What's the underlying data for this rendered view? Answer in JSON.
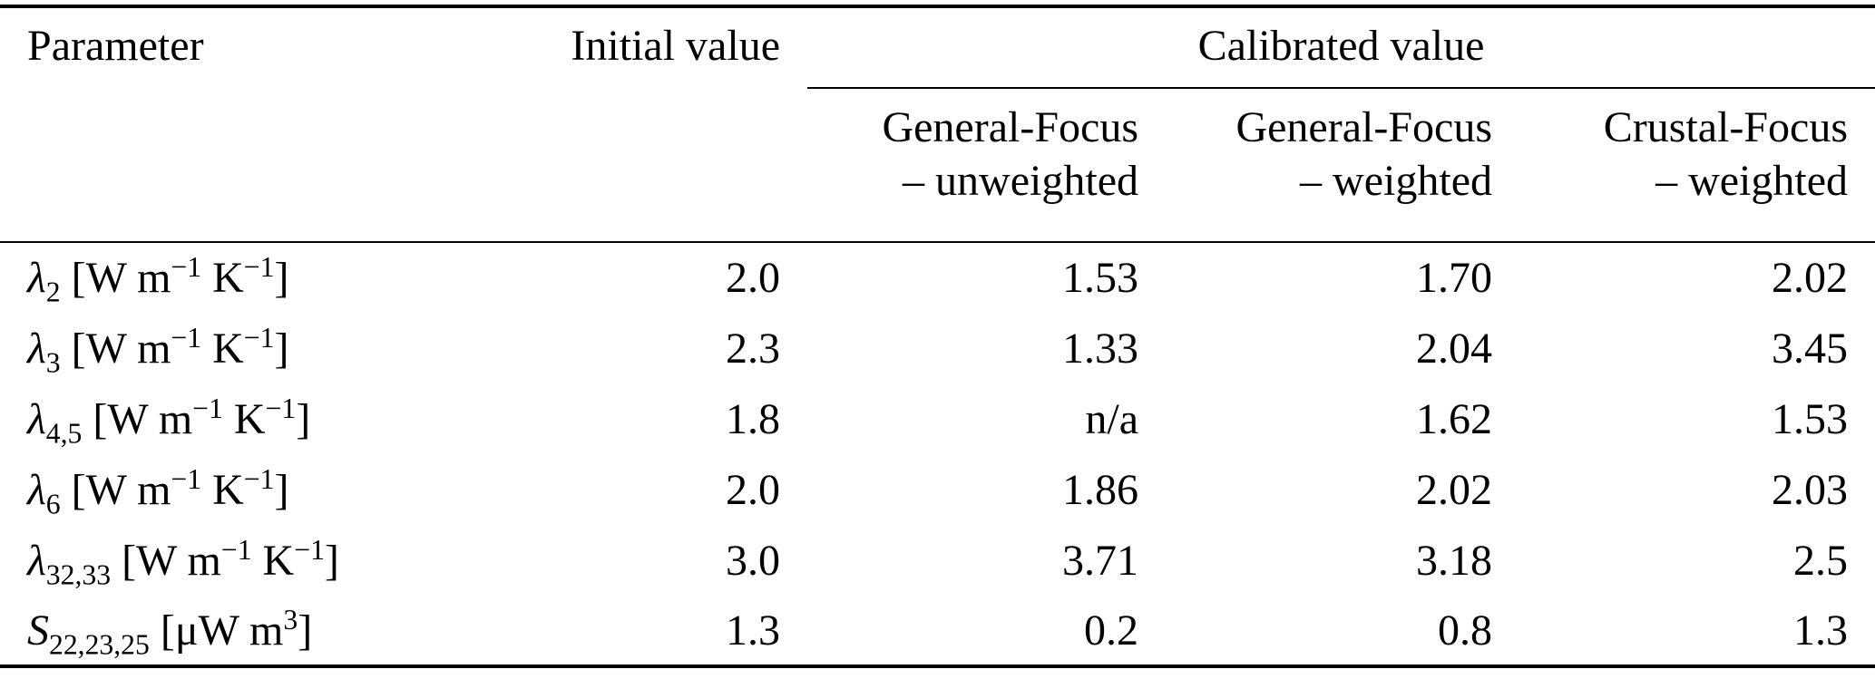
{
  "table": {
    "columns": {
      "parameter": "Parameter",
      "initial": "Initial value",
      "calibrated_group": "Calibrated value",
      "calibrated_subcolumns": [
        {
          "name_line": "General-Focus",
          "variant_line": "– unweighted"
        },
        {
          "name_line": "General-Focus",
          "variant_line": "– weighted"
        },
        {
          "name_line": "Crustal-Focus",
          "variant_line": "– weighted"
        }
      ]
    },
    "rows": [
      {
        "parameter_html": "<i>λ</i><sub>2</sub> [W m<sup>−1</sup> K<sup>−1</sup>]",
        "initial": "2.0",
        "general_unweighted": "1.53",
        "general_weighted": "1.70",
        "crustal_weighted": "2.02"
      },
      {
        "parameter_html": "<i>λ</i><sub>3</sub> [W m<sup>−1</sup> K<sup>−1</sup>]",
        "initial": "2.3",
        "general_unweighted": "1.33",
        "general_weighted": "2.04",
        "crustal_weighted": "3.45"
      },
      {
        "parameter_html": "<i>λ</i><sub>4,5</sub> [W m<sup>−1</sup> K<sup>−1</sup>]",
        "initial": "1.8",
        "general_unweighted": "n/a",
        "general_weighted": "1.62",
        "crustal_weighted": "1.53"
      },
      {
        "parameter_html": "<i>λ</i><sub>6</sub> [W m<sup>−1</sup> K<sup>−1</sup>]",
        "initial": "2.0",
        "general_unweighted": "1.86",
        "general_weighted": "2.02",
        "crustal_weighted": "2.03"
      },
      {
        "parameter_html": "<i>λ</i><sub>32,33</sub> [W m<sup>−1</sup> K<sup>−1</sup>]",
        "initial": "3.0",
        "general_unweighted": "3.71",
        "general_weighted": "3.18",
        "crustal_weighted": "2.5"
      },
      {
        "parameter_html": "<i>S</i><sub>22,23,25</sub> [μW m<sup>3</sup>]",
        "initial": "1.3",
        "general_unweighted": "0.2",
        "general_weighted": "0.8",
        "crustal_weighted": "1.3"
      }
    ]
  }
}
